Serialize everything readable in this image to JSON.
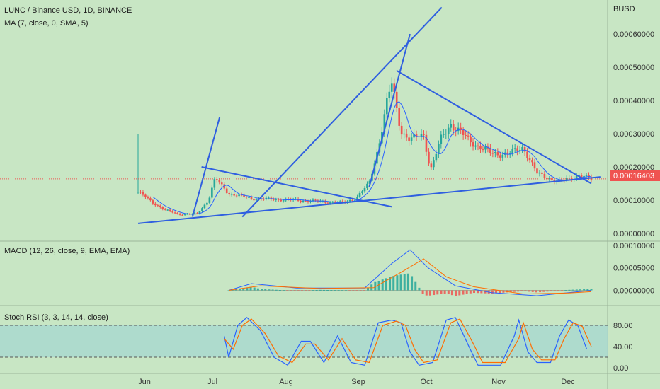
{
  "header": {
    "symbol_line": "LUNC / Binance USD, 1D, BINANCE",
    "ma_line": "MA (7, close, 0, SMA, 5)",
    "quote_currency": "BUSD",
    "last_price_label": "0.00016403"
  },
  "panels": {
    "macd_title": "MACD (12, 26, close, 9, EMA, EMA)",
    "rsi_title": "Stoch RSI (3, 3, 14, 14, close)"
  },
  "colors": {
    "background": "#c8e6c4",
    "rsi_band": "#a8d8cf",
    "up": "#26a69a",
    "down": "#ef5350",
    "trendline": "#2f5fe0",
    "ma": "#2962ff",
    "macd_line": "#2962ff",
    "signal_line": "#ff6d00",
    "k_line": "#2962ff",
    "d_line": "#ff6d00",
    "price_tag": "#ef5350"
  },
  "chart_data": [
    {
      "type": "candlestick",
      "title": "LUNC / Binance USD, 1D, BINANCE",
      "x_labels": [
        "Jun",
        "Jul",
        "Aug",
        "Sep",
        "Oct",
        "Nov",
        "Dec"
      ],
      "ylim": [
        0,
        0.00063
      ],
      "y_ticks": [
        "0.00060000",
        "0.00050000",
        "0.00040000",
        "0.00030000",
        "0.00020000",
        "0.00010000",
        "0.00000000"
      ],
      "y_tick_values": [
        0.0006,
        0.0005,
        0.0004,
        0.0003,
        0.0002,
        0.0001,
        0.0
      ],
      "last_price": 0.00016403,
      "close_path": [
        {
          "t": 0.0,
          "v": 0.000125
        },
        {
          "t": 0.03,
          "v": 9.5e-05
        },
        {
          "t": 0.06,
          "v": 7e-05
        },
        {
          "t": 0.09,
          "v": 5.8e-05
        },
        {
          "t": 0.13,
          "v": 5.8e-05
        },
        {
          "t": 0.155,
          "v": 0.0001
        },
        {
          "t": 0.17,
          "v": 0.000165
        },
        {
          "t": 0.2,
          "v": 0.00012
        },
        {
          "t": 0.25,
          "v": 0.000105
        },
        {
          "t": 0.35,
          "v": 0.0001
        },
        {
          "t": 0.45,
          "v": 9.2e-05
        },
        {
          "t": 0.48,
          "v": 0.000105
        },
        {
          "t": 0.51,
          "v": 0.00015
        },
        {
          "t": 0.53,
          "v": 0.00026
        },
        {
          "t": 0.55,
          "v": 0.0004
        },
        {
          "t": 0.56,
          "v": 0.00045
        },
        {
          "t": 0.58,
          "v": 0.00031
        },
        {
          "t": 0.6,
          "v": 0.00028
        },
        {
          "t": 0.63,
          "v": 0.0003
        },
        {
          "t": 0.645,
          "v": 0.00019
        },
        {
          "t": 0.67,
          "v": 0.00029
        },
        {
          "t": 0.69,
          "v": 0.00033
        },
        {
          "t": 0.73,
          "v": 0.00028
        },
        {
          "t": 0.78,
          "v": 0.00024
        },
        {
          "t": 0.82,
          "v": 0.00024
        },
        {
          "t": 0.85,
          "v": 0.00026
        },
        {
          "t": 0.88,
          "v": 0.00018
        },
        {
          "t": 0.93,
          "v": 0.000155
        },
        {
          "t": 0.97,
          "v": 0.000175
        },
        {
          "t": 1.0,
          "v": 0.000164
        }
      ],
      "spike_high": 0.0003,
      "annotations": [
        {
          "label": "rising wedge top line",
          "points": [
            [
              0.23,
              5e-05
            ],
            [
              0.67,
              0.00068
            ]
          ]
        },
        {
          "label": "sep breakout line",
          "points": [
            [
              0.51,
              0.00014
            ],
            [
              0.6,
              0.0006
            ]
          ]
        },
        {
          "label": "jun-jul short rising",
          "points": [
            [
              0.12,
              5e-05
            ],
            [
              0.18,
              0.00035
            ]
          ]
        },
        {
          "label": "jul-aug descending",
          "points": [
            [
              0.14,
              0.0002
            ],
            [
              0.56,
              8e-05
            ]
          ]
        },
        {
          "label": "sep-dec descending",
          "points": [
            [
              0.57,
              0.00049
            ],
            [
              1.0,
              0.00015
            ]
          ]
        },
        {
          "label": "long support",
          "points": [
            [
              0.0,
              3e-05
            ],
            [
              1.02,
              0.00017
            ]
          ]
        }
      ]
    },
    {
      "type": "macd",
      "title": "MACD (12, 26, close, 9, EMA, EMA)",
      "ylim": [
        -1.5e-05,
        0.0001
      ],
      "y_ticks": [
        "0.00010000",
        "0.00005000",
        "0.00000000"
      ],
      "y_tick_values": [
        0.0001,
        5e-05,
        0.0
      ],
      "macd_path": [
        {
          "t": 0.2,
          "v": 0.0
        },
        {
          "t": 0.25,
          "v": 1.5e-05
        },
        {
          "t": 0.35,
          "v": 5e-06
        },
        {
          "t": 0.5,
          "v": 5e-06
        },
        {
          "t": 0.56,
          "v": 6e-05
        },
        {
          "t": 0.6,
          "v": 9e-05
        },
        {
          "t": 0.64,
          "v": 5e-05
        },
        {
          "t": 0.7,
          "v": 1e-05
        },
        {
          "t": 0.78,
          "v": -5e-06
        },
        {
          "t": 0.88,
          "v": -1.2e-05
        },
        {
          "t": 0.95,
          "v": -5e-06
        },
        {
          "t": 1.0,
          "v": 0.0
        }
      ],
      "signal_path": [
        {
          "t": 0.2,
          "v": 0.0
        },
        {
          "t": 0.27,
          "v": 1e-05
        },
        {
          "t": 0.4,
          "v": 4e-06
        },
        {
          "t": 0.52,
          "v": 6e-06
        },
        {
          "t": 0.58,
          "v": 4e-05
        },
        {
          "t": 0.63,
          "v": 7e-05
        },
        {
          "t": 0.68,
          "v": 3e-05
        },
        {
          "t": 0.74,
          "v": 8e-06
        },
        {
          "t": 0.85,
          "v": -8e-06
        },
        {
          "t": 0.95,
          "v": -6e-06
        },
        {
          "t": 1.0,
          "v": -3e-06
        }
      ]
    },
    {
      "type": "stoch_rsi",
      "title": "Stoch RSI (3, 3, 14, 14, close)",
      "ylim": [
        0,
        100
      ],
      "y_ticks": [
        "80.00",
        "40.00",
        "0.00"
      ],
      "y_tick_values": [
        80,
        40,
        0
      ],
      "band": [
        20,
        80
      ],
      "k_path": [
        {
          "t": 0.19,
          "v": 60
        },
        {
          "t": 0.2,
          "v": 20
        },
        {
          "t": 0.22,
          "v": 80
        },
        {
          "t": 0.24,
          "v": 95
        },
        {
          "t": 0.27,
          "v": 70
        },
        {
          "t": 0.3,
          "v": 20
        },
        {
          "t": 0.33,
          "v": 5
        },
        {
          "t": 0.36,
          "v": 50
        },
        {
          "t": 0.38,
          "v": 50
        },
        {
          "t": 0.41,
          "v": 10
        },
        {
          "t": 0.44,
          "v": 60
        },
        {
          "t": 0.47,
          "v": 10
        },
        {
          "t": 0.5,
          "v": 5
        },
        {
          "t": 0.53,
          "v": 85
        },
        {
          "t": 0.56,
          "v": 90
        },
        {
          "t": 0.58,
          "v": 85
        },
        {
          "t": 0.6,
          "v": 30
        },
        {
          "t": 0.62,
          "v": 5
        },
        {
          "t": 0.65,
          "v": 10
        },
        {
          "t": 0.68,
          "v": 90
        },
        {
          "t": 0.7,
          "v": 95
        },
        {
          "t": 0.73,
          "v": 40
        },
        {
          "t": 0.75,
          "v": 5
        },
        {
          "t": 0.8,
          "v": 5
        },
        {
          "t": 0.83,
          "v": 60
        },
        {
          "t": 0.84,
          "v": 90
        },
        {
          "t": 0.86,
          "v": 30
        },
        {
          "t": 0.88,
          "v": 10
        },
        {
          "t": 0.91,
          "v": 10
        },
        {
          "t": 0.93,
          "v": 60
        },
        {
          "t": 0.95,
          "v": 90
        },
        {
          "t": 0.97,
          "v": 80
        },
        {
          "t": 0.99,
          "v": 35
        }
      ],
      "d_path": [
        {
          "t": 0.19,
          "v": 55
        },
        {
          "t": 0.21,
          "v": 35
        },
        {
          "t": 0.23,
          "v": 80
        },
        {
          "t": 0.25,
          "v": 92
        },
        {
          "t": 0.28,
          "v": 65
        },
        {
          "t": 0.31,
          "v": 22
        },
        {
          "t": 0.34,
          "v": 10
        },
        {
          "t": 0.37,
          "v": 45
        },
        {
          "t": 0.39,
          "v": 45
        },
        {
          "t": 0.42,
          "v": 15
        },
        {
          "t": 0.45,
          "v": 55
        },
        {
          "t": 0.48,
          "v": 15
        },
        {
          "t": 0.51,
          "v": 10
        },
        {
          "t": 0.54,
          "v": 80
        },
        {
          "t": 0.57,
          "v": 88
        },
        {
          "t": 0.59,
          "v": 80
        },
        {
          "t": 0.61,
          "v": 35
        },
        {
          "t": 0.63,
          "v": 10
        },
        {
          "t": 0.66,
          "v": 15
        },
        {
          "t": 0.69,
          "v": 85
        },
        {
          "t": 0.71,
          "v": 92
        },
        {
          "t": 0.74,
          "v": 45
        },
        {
          "t": 0.76,
          "v": 10
        },
        {
          "t": 0.81,
          "v": 10
        },
        {
          "t": 0.84,
          "v": 55
        },
        {
          "t": 0.85,
          "v": 85
        },
        {
          "t": 0.87,
          "v": 35
        },
        {
          "t": 0.89,
          "v": 15
        },
        {
          "t": 0.92,
          "v": 15
        },
        {
          "t": 0.94,
          "v": 55
        },
        {
          "t": 0.96,
          "v": 85
        },
        {
          "t": 0.98,
          "v": 78
        },
        {
          "t": 1.0,
          "v": 40
        }
      ]
    }
  ]
}
